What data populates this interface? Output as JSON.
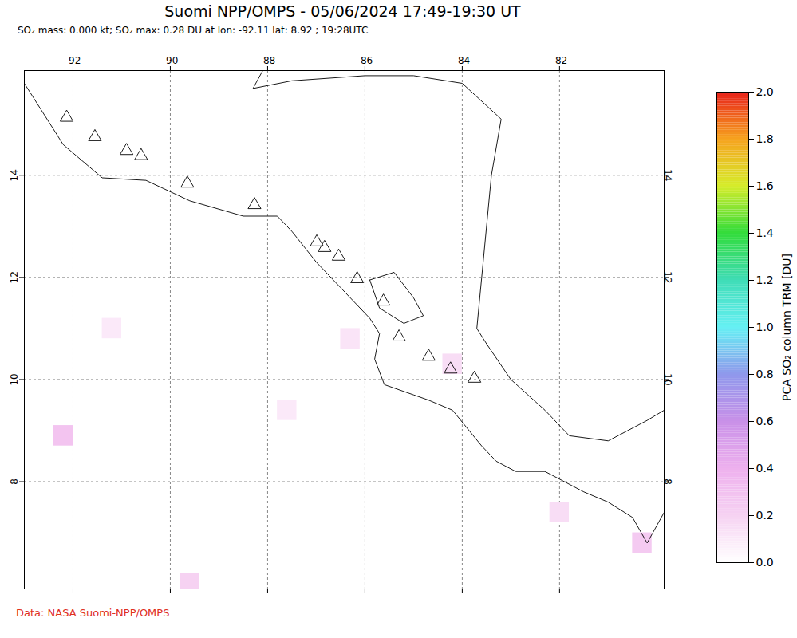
{
  "chart_data": {
    "type": "map",
    "title": "Suomi NPP/OMPS - 05/06/2024 17:49-19:30 UT",
    "subtitle": "SO₂ mass: 0.000 kt; SO₂ max: 0.28 DU at lon: -92.11 lat: 8.92 ; 19:28UTC",
    "caption": "Data: NASA Suomi-NPP/OMPS",
    "xlim": [
      -93.0,
      -79.85
    ],
    "ylim": [
      5.9,
      16.05
    ],
    "xticks": [
      -92,
      -90,
      -88,
      -86,
      -84,
      -82
    ],
    "yticks": [
      8,
      10,
      12,
      14
    ],
    "grid": true,
    "volcanoes": {
      "lon": [
        -92.13,
        -91.55,
        -90.9,
        -90.6,
        -89.65,
        -88.27,
        -86.99,
        -86.83,
        -86.54,
        -86.16,
        -85.62,
        -85.3,
        -84.69,
        -84.24,
        -83.75
      ],
      "lat": [
        15.13,
        14.75,
        14.48,
        14.38,
        13.84,
        13.42,
        12.69,
        12.58,
        12.41,
        11.97,
        11.53,
        10.83,
        10.45,
        10.2,
        10.02
      ]
    },
    "so2_cells": [
      {
        "lon": -92.2,
        "lat": 8.9,
        "value": 0.28
      },
      {
        "lon": -80.3,
        "lat": 6.8,
        "value": 0.25
      },
      {
        "lon": -89.6,
        "lat": 6.0,
        "value": 0.2
      },
      {
        "lon": -84.2,
        "lat": 10.3,
        "value": 0.15
      },
      {
        "lon": -82.0,
        "lat": 7.4,
        "value": 0.15
      },
      {
        "lon": -86.3,
        "lat": 10.8,
        "value": 0.12
      },
      {
        "lon": -91.2,
        "lat": 11.0,
        "value": 0.1
      },
      {
        "lon": -87.6,
        "lat": 9.4,
        "value": 0.1
      }
    ],
    "coastline": [
      [
        [
          -93.0,
          15.8
        ],
        [
          -92.2,
          14.6
        ],
        [
          -91.4,
          13.95
        ],
        [
          -90.5,
          13.9
        ],
        [
          -89.6,
          13.5
        ],
        [
          -88.5,
          13.2
        ],
        [
          -87.8,
          13.2
        ],
        [
          -87.5,
          12.9
        ],
        [
          -87.0,
          12.3
        ],
        [
          -86.5,
          11.8
        ],
        [
          -85.9,
          11.2
        ],
        [
          -85.7,
          10.9
        ],
        [
          -85.8,
          10.4
        ],
        [
          -85.6,
          9.9
        ],
        [
          -85.0,
          9.7
        ],
        [
          -84.7,
          9.6
        ],
        [
          -84.2,
          9.4
        ],
        [
          -83.6,
          8.7
        ],
        [
          -83.3,
          8.4
        ],
        [
          -82.9,
          8.2
        ],
        [
          -82.3,
          8.2
        ],
        [
          -81.5,
          7.8
        ],
        [
          -81.0,
          7.6
        ],
        [
          -80.5,
          7.3
        ],
        [
          -80.2,
          6.8
        ],
        [
          -79.85,
          7.4
        ]
      ],
      [
        [
          -88.1,
          16.05
        ],
        [
          -88.3,
          15.7
        ],
        [
          -87.5,
          15.85
        ],
        [
          -86.0,
          15.95
        ],
        [
          -85.0,
          15.95
        ],
        [
          -84.0,
          15.8
        ],
        [
          -83.2,
          15.1
        ],
        [
          -83.4,
          14.0
        ],
        [
          -83.5,
          13.0
        ],
        [
          -83.6,
          12.0
        ],
        [
          -83.7,
          11.0
        ],
        [
          -83.5,
          10.7
        ],
        [
          -83.0,
          10.0
        ],
        [
          -82.3,
          9.4
        ],
        [
          -81.8,
          8.9
        ],
        [
          -81.0,
          8.8
        ],
        [
          -80.2,
          9.2
        ],
        [
          -79.85,
          9.4
        ]
      ],
      [
        [
          -85.9,
          11.95
        ],
        [
          -85.4,
          12.1
        ],
        [
          -85.0,
          11.6
        ],
        [
          -84.8,
          11.25
        ],
        [
          -85.2,
          11.1
        ],
        [
          -85.7,
          11.4
        ],
        [
          -85.9,
          11.95
        ]
      ]
    ],
    "colorbar": {
      "label": "PCA SO₂ column TRM [DU]",
      "range": [
        0.0,
        2.0
      ],
      "ticks": [
        {
          "value": 0.0,
          "label": "0.0"
        },
        {
          "value": 0.2,
          "label": "0.2"
        },
        {
          "value": 0.4,
          "label": "0.4"
        },
        {
          "value": 0.6,
          "label": "0.6"
        },
        {
          "value": 0.8,
          "label": "0.8"
        },
        {
          "value": 1.0,
          "label": "1.0"
        },
        {
          "value": 1.2,
          "label": "1.2"
        },
        {
          "value": 1.4,
          "label": "1.4"
        },
        {
          "value": 1.6,
          "label": "1.6"
        },
        {
          "value": 1.8,
          "label": "1.8"
        },
        {
          "value": 2.0,
          "label": "2.0"
        }
      ]
    }
  }
}
